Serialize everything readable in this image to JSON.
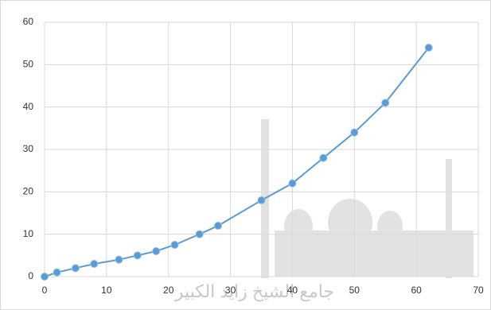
{
  "chart_data": {
    "type": "line",
    "x": [
      0,
      2,
      5,
      8,
      12,
      15,
      18,
      21,
      25,
      28,
      35,
      40,
      45,
      50,
      55,
      62
    ],
    "series": [
      {
        "color": "#5b9bd5",
        "values": [
          0,
          1,
          2,
          3,
          4,
          5,
          6,
          7.5,
          10,
          12,
          18,
          22,
          28,
          34,
          41,
          54
        ]
      }
    ],
    "xlim": [
      0,
      70
    ],
    "xticks": [
      0,
      10,
      20,
      30,
      40,
      50,
      60,
      70
    ],
    "ylim": [
      0,
      60
    ],
    "yticks": [
      0,
      10,
      20,
      30,
      40,
      50,
      60
    ],
    "grid": true,
    "watermark_text": "جامع الشيخ زايد الكبير"
  }
}
